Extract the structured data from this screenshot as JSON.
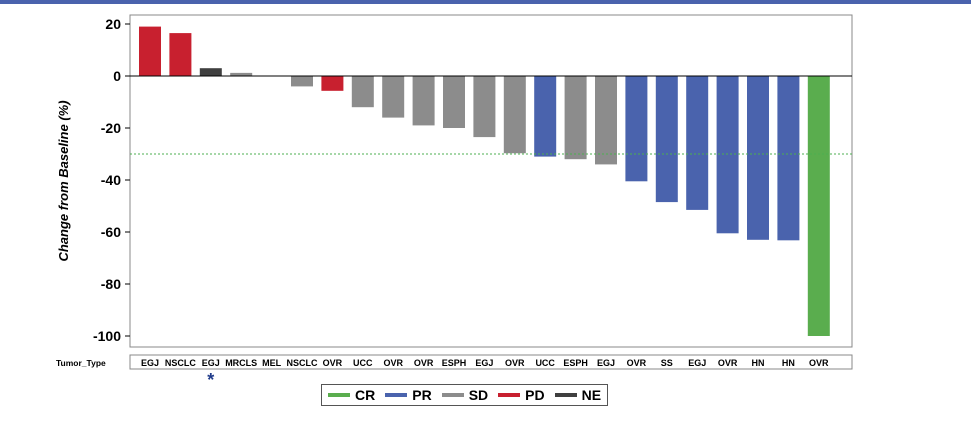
{
  "chart_data": {
    "type": "bar",
    "ylabel": "Change from Baseline (%)",
    "ylim": [
      -105,
      23
    ],
    "yticks": [
      20,
      0,
      -20,
      -40,
      -60,
      -80,
      -100
    ],
    "reference_line": -30,
    "category_axis_label": "Tumor_Type",
    "categories": [
      "EGJ",
      "NSCLC",
      "EGJ",
      "MRCLS",
      "MEL",
      "NSCLC",
      "OVR",
      "UCC",
      "OVR",
      "OVR",
      "ESPH",
      "EGJ",
      "OVR",
      "UCC",
      "ESPH",
      "EGJ",
      "OVR",
      "SS",
      "EGJ",
      "OVR",
      "HN",
      "HN",
      "OVR"
    ],
    "values": [
      19,
      16.5,
      3,
      1.2,
      0,
      -4,
      -5.7,
      -12,
      -16,
      -19,
      -20,
      -23.5,
      -29.7,
      -31,
      -32,
      -34,
      -40.5,
      -48.5,
      -51.5,
      -60.5,
      -63,
      -63.2,
      -100
    ],
    "responses": [
      "PD",
      "PD",
      "NE",
      "SD",
      "SD",
      "SD",
      "PD",
      "SD",
      "SD",
      "SD",
      "SD",
      "SD",
      "SD",
      "PR",
      "SD",
      "SD",
      "PR",
      "PR",
      "PR",
      "PR",
      "PR",
      "PR",
      "CR"
    ],
    "marked_index": 2,
    "marker_symbol": "*",
    "legend": {
      "placement": "bottom-center",
      "entries": [
        {
          "label": "CR",
          "color": "#5aad4e"
        },
        {
          "label": "PR",
          "color": "#4a63ad"
        },
        {
          "label": "SD",
          "color": "#8c8c8c"
        },
        {
          "label": "PD",
          "color": "#c8202f"
        },
        {
          "label": "NE",
          "color": "#3f3f3f"
        }
      ]
    },
    "colors": {
      "CR": "#5aad4e",
      "PR": "#4a63ad",
      "SD": "#8c8c8c",
      "PD": "#c8202f",
      "NE": "#3f3f3f"
    }
  }
}
